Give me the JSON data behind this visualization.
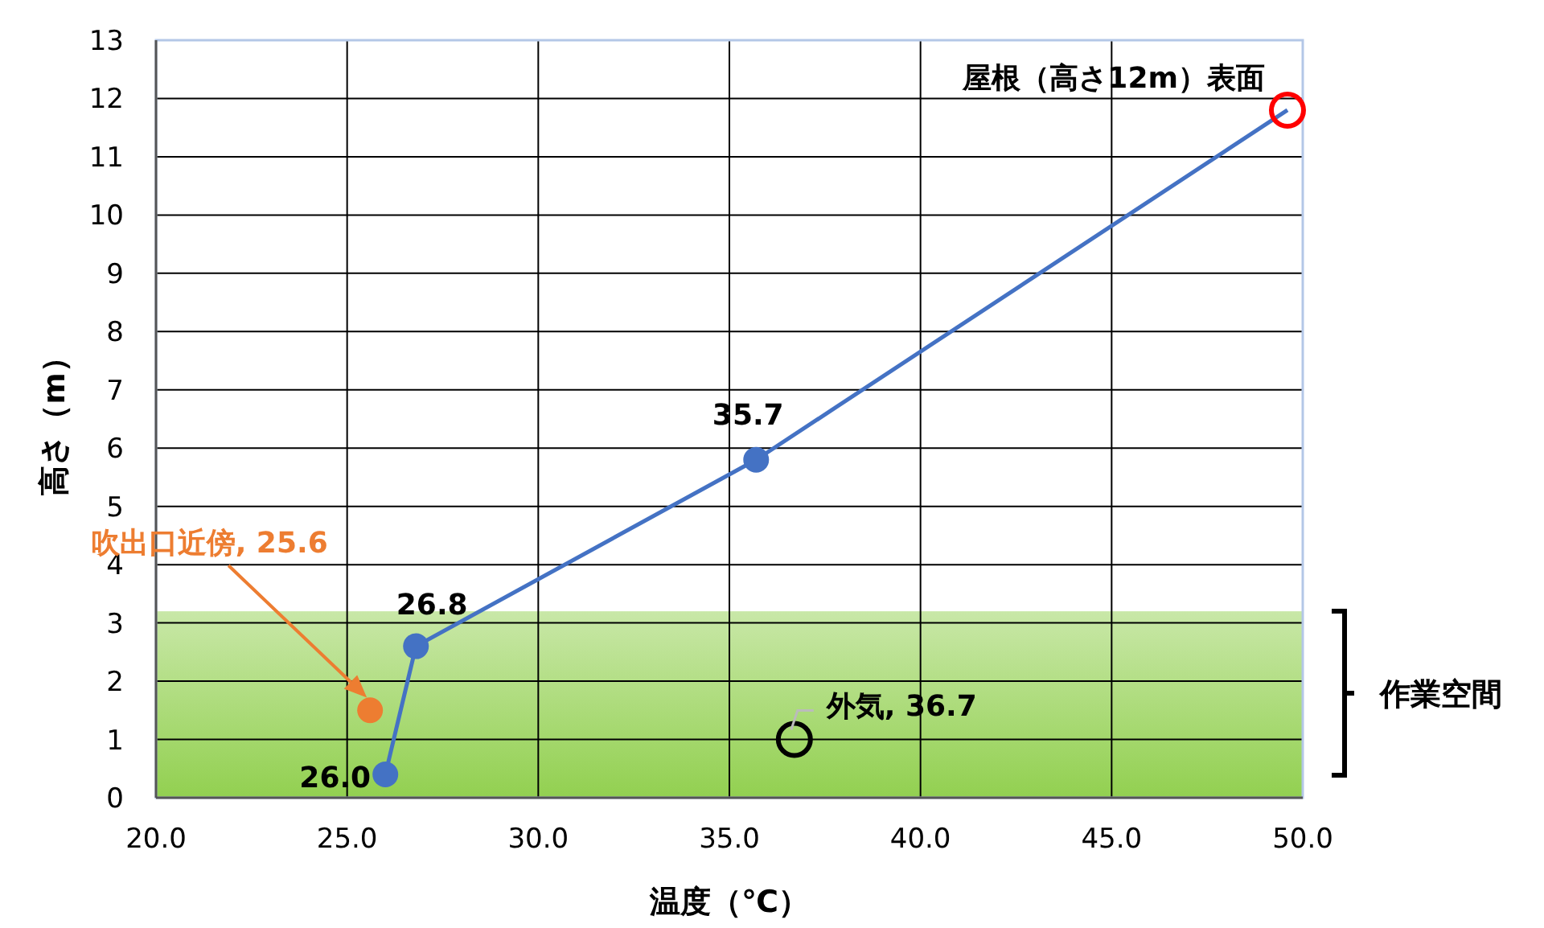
{
  "chart_data": {
    "type": "scatter",
    "xlabel": "温度（℃）",
    "ylabel": "高さ（m）",
    "xlim": [
      20,
      50
    ],
    "ylim": [
      0,
      13
    ],
    "xticks": [
      {
        "value": 20,
        "label": "20.0"
      },
      {
        "value": 25,
        "label": "25.0"
      },
      {
        "value": 30,
        "label": "30.0"
      },
      {
        "value": 35,
        "label": "35.0"
      },
      {
        "value": 40,
        "label": "40.0"
      },
      {
        "value": 45,
        "label": "45.0"
      },
      {
        "value": 50,
        "label": "50.0"
      }
    ],
    "yticks": [
      0,
      1,
      2,
      3,
      4,
      5,
      6,
      7,
      8,
      9,
      10,
      11,
      12,
      13
    ],
    "grid": true,
    "series": [
      {
        "type": "line",
        "color": "#4472c4",
        "marker": "none",
        "x": [
          26.0,
          26.8,
          35.7,
          49.6
        ],
        "values": [
          0.4,
          2.6,
          5.8,
          11.8
        ]
      },
      {
        "color": "#4472c4",
        "marker": "circle",
        "x": [
          26.0,
          26.8,
          35.7
        ],
        "values": [
          0.4,
          2.6,
          5.8
        ]
      },
      {
        "color": "#ed7d31",
        "marker": "circle",
        "x": [
          25.6
        ],
        "values": [
          1.5
        ]
      },
      {
        "color": "#ff0000",
        "x": [
          49.6
        ],
        "values": [
          11.8
        ]
      },
      {
        "color": "#000000",
        "x": [
          36.7
        ],
        "values": [
          1.0
        ]
      }
    ],
    "bands": [
      {
        "axis": "y",
        "from": 0,
        "to": 3.2,
        "label": "作業空間",
        "color": "#92d050"
      }
    ],
    "annotations": [
      {
        "text": "26.0",
        "x": 26.0,
        "y": 0.4
      },
      {
        "text": "26.8",
        "x": 26.8,
        "y": 2.6
      },
      {
        "text": "35.7",
        "x": 35.7,
        "y": 5.8
      },
      {
        "text": "屋根（高さ12m）表面",
        "x": 49.6,
        "y": 11.8
      },
      "吹出口近傍, 25.6",
      {
        "text": "外気, 36.7",
        "x": 36.7,
        "y": 1.0
      }
    ]
  }
}
